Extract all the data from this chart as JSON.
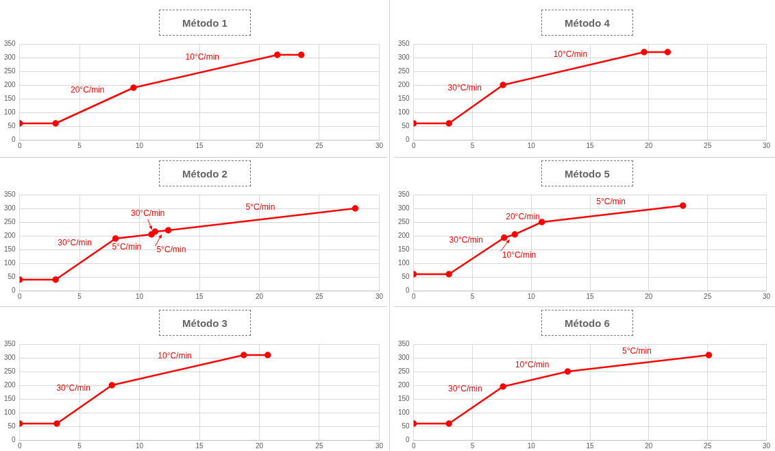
{
  "chart_data": [
    {
      "type": "line",
      "title": "Método 1",
      "series": [
        {
          "color": "#ff0000",
          "x": [
            0,
            3,
            9.5,
            21.5,
            23.5
          ],
          "values": [
            60,
            60,
            190,
            310,
            310
          ]
        }
      ],
      "xlim": [
        0,
        30
      ],
      "xticks": [
        0,
        5,
        10,
        15,
        20,
        25,
        30
      ],
      "ylim": [
        0,
        350
      ],
      "yticks": [
        0,
        50,
        100,
        150,
        200,
        250,
        300,
        350
      ],
      "grid": true,
      "marker": "circle",
      "line_style": "solid",
      "legend": false,
      "annotations": [
        "20°C/min",
        "10°C/min"
      ]
    },
    {
      "type": "line",
      "title": "Método 4",
      "series": [
        {
          "color": "#ff0000",
          "x": [
            0,
            3,
            7.6,
            19.6,
            21.6
          ],
          "values": [
            60,
            60,
            200,
            320,
            320
          ]
        }
      ],
      "xlim": [
        0,
        30
      ],
      "xticks": [
        0,
        5,
        10,
        15,
        20,
        25,
        30
      ],
      "ylim": [
        0,
        350
      ],
      "yticks": [
        0,
        50,
        100,
        150,
        200,
        250,
        300,
        350
      ],
      "grid": true,
      "marker": "circle",
      "line_style": "solid",
      "legend": false,
      "annotations": [
        "30°C/min",
        "10°C/min"
      ]
    },
    {
      "type": "line",
      "title": "Método 2",
      "series": [
        {
          "color": "#ff0000",
          "x": [
            0,
            3,
            8,
            11,
            11.3,
            12.4,
            28
          ],
          "values": [
            40,
            40,
            190,
            205,
            215,
            220,
            300
          ]
        }
      ],
      "xlim": [
        0,
        30
      ],
      "xticks": [
        0,
        5,
        10,
        15,
        20,
        25,
        30
      ],
      "ylim": [
        0,
        350
      ],
      "yticks": [
        0,
        50,
        100,
        150,
        200,
        250,
        300,
        350
      ],
      "grid": true,
      "marker": "circle",
      "line_style": "solid",
      "legend": false,
      "annotations": [
        "30°C/min",
        "5°C/min",
        "30°C/min",
        "5°C/min",
        "5°C/min"
      ]
    },
    {
      "type": "line",
      "title": "Método 5",
      "series": [
        {
          "color": "#ff0000",
          "x": [
            0,
            3,
            7.7,
            8.6,
            10.9,
            22.9
          ],
          "values": [
            60,
            60,
            193,
            205,
            250,
            310
          ]
        }
      ],
      "xlim": [
        0,
        30
      ],
      "xticks": [
        0,
        5,
        10,
        15,
        20,
        25,
        30
      ],
      "ylim": [
        0,
        350
      ],
      "yticks": [
        0,
        50,
        100,
        150,
        200,
        250,
        300,
        350
      ],
      "grid": true,
      "marker": "circle",
      "line_style": "solid",
      "legend": false,
      "annotations": [
        "30°C/min",
        "10°C/min",
        "20°C/min",
        "5°C/min"
      ]
    },
    {
      "type": "line",
      "title": "Método 3",
      "series": [
        {
          "color": "#ff0000",
          "x": [
            0,
            3.1,
            7.7,
            18.7,
            20.7
          ],
          "values": [
            60,
            60,
            200,
            310,
            310
          ]
        }
      ],
      "xlim": [
        0,
        30
      ],
      "xticks": [
        0,
        5,
        10,
        15,
        20,
        25,
        30
      ],
      "ylim": [
        0,
        350
      ],
      "yticks": [
        0,
        50,
        100,
        150,
        200,
        250,
        300,
        350
      ],
      "grid": true,
      "marker": "circle",
      "line_style": "solid",
      "legend": false,
      "annotations": [
        "30°C/min",
        "10°C/min"
      ]
    },
    {
      "type": "line",
      "title": "Método 6",
      "series": [
        {
          "color": "#ff0000",
          "x": [
            0,
            3,
            7.6,
            13.1,
            25.1
          ],
          "values": [
            60,
            60,
            195,
            250,
            310
          ]
        }
      ],
      "xlim": [
        0,
        30
      ],
      "xticks": [
        0,
        5,
        10,
        15,
        20,
        25,
        30
      ],
      "ylim": [
        0,
        350
      ],
      "yticks": [
        0,
        50,
        100,
        150,
        200,
        250,
        300,
        350
      ],
      "grid": true,
      "marker": "circle",
      "line_style": "solid",
      "legend": false,
      "annotations": [
        "30°C/min",
        "10°C/min",
        "5°C/min"
      ]
    }
  ]
}
